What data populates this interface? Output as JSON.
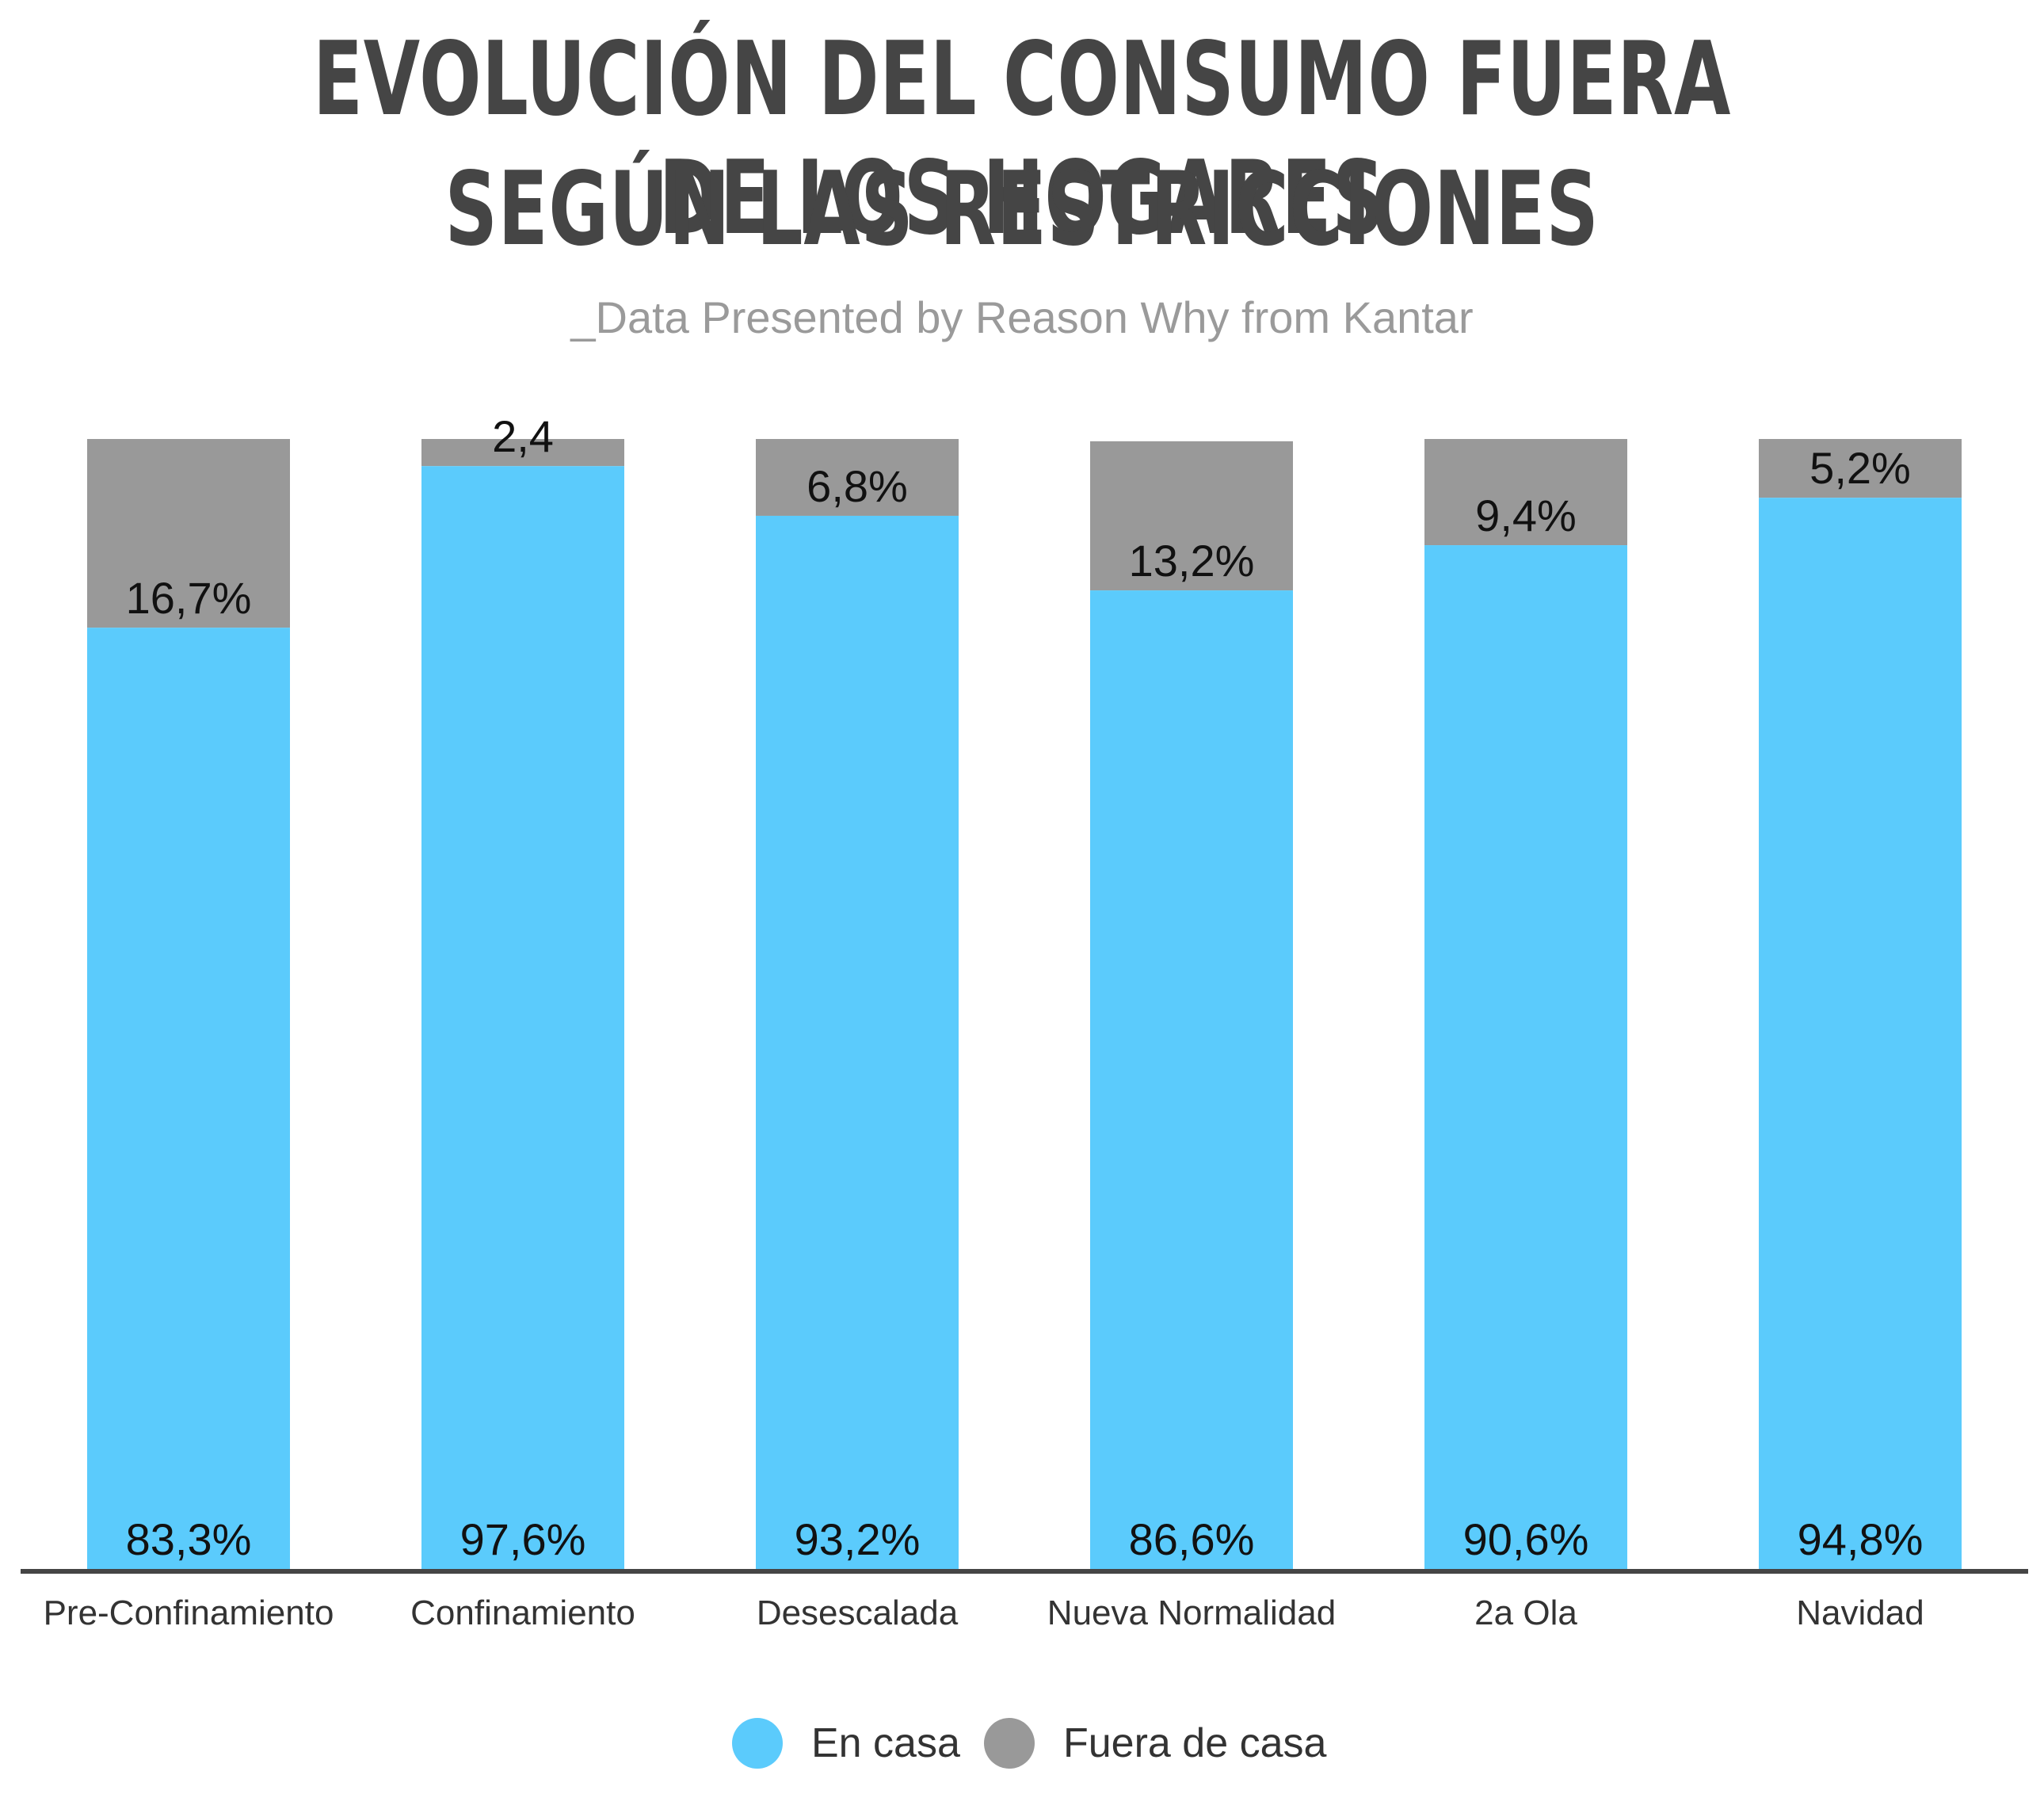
{
  "title_line1": "EVOLUCIÓN DEL CONSUMO FUERA DE LOS HOGARES",
  "title_line2": "SEGÚN LAS RESTRICCIONES",
  "subtitle": "_Data Presented by Reason Why from Kantar",
  "colors": {
    "en_casa": "#5bcbfc",
    "fuera_de_casa": "#999999",
    "axis": "#454545",
    "label_text": "#111111",
    "category_text": "#333333"
  },
  "legend": {
    "en_casa": "En casa",
    "fuera_de_casa": "Fuera de casa"
  },
  "chart_data": {
    "type": "bar",
    "stacked": true,
    "categories": [
      "Pre-Confinamiento",
      "Confinamiento",
      "Desescalada",
      "Nueva Normalidad",
      "2a Ola",
      "Navidad"
    ],
    "series": [
      {
        "name": "En casa",
        "values": [
          83.3,
          97.6,
          93.2,
          86.6,
          90.6,
          94.8
        ]
      },
      {
        "name": "Fuera de casa",
        "values": [
          16.7,
          2.4,
          6.8,
          13.2,
          9.4,
          5.2
        ]
      }
    ],
    "data_labels": {
      "en_casa": [
        "83,3%",
        "97,6%",
        "93,2%",
        "86,6%",
        "90,6%",
        "94,8%"
      ],
      "fuera_de_casa": [
        "16,7%",
        "2,4",
        "6,8%",
        "13,2%",
        "9,4%",
        "5,2%"
      ]
    },
    "ylim": [
      0,
      100
    ],
    "grid": false,
    "legend_position": "bottom"
  }
}
